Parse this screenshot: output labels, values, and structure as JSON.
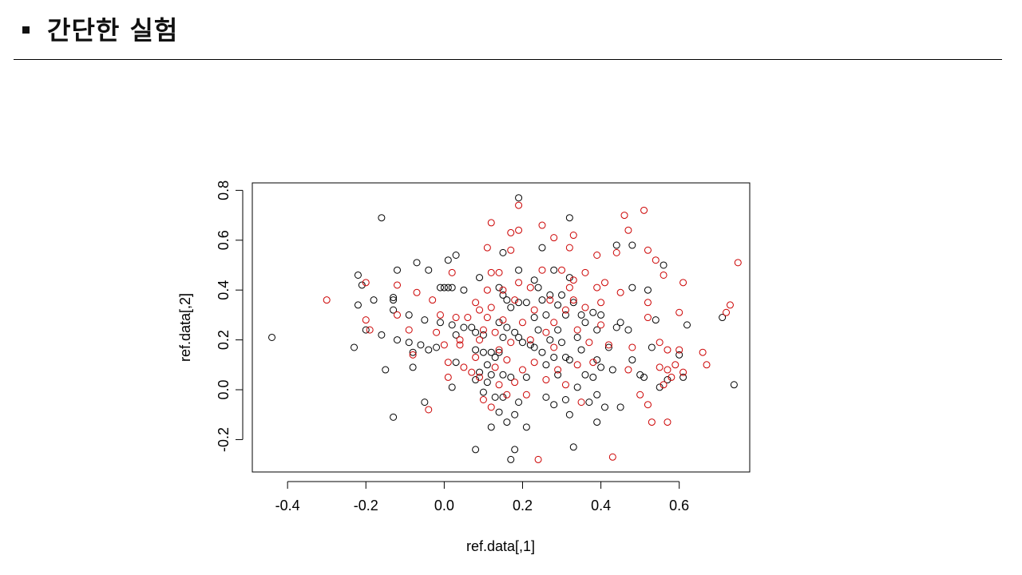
{
  "slide": {
    "title": "간단한 실험"
  },
  "colors": {
    "series_black": "#000000",
    "series_red": "#cc0000",
    "axis": "#000000"
  },
  "chart_data": {
    "type": "scatter",
    "title": "",
    "xlabel": "ref.data[,1]",
    "ylabel": "ref.data[,2]",
    "xlim": [
      -0.49,
      0.78
    ],
    "ylim": [
      -0.33,
      0.83
    ],
    "xticks": [
      -0.4,
      -0.2,
      0.0,
      0.2,
      0.4,
      0.6
    ],
    "xtick_labels": [
      "-0.4",
      "-0.2",
      "0.0",
      "0.2",
      "0.4",
      "0.6"
    ],
    "yticks": [
      -0.2,
      0.0,
      0.2,
      0.4,
      0.6,
      0.8
    ],
    "ytick_labels": [
      "-0.2",
      "0.0",
      "0.2",
      "0.4",
      "0.6",
      "0.8"
    ],
    "grid": false,
    "marker": "open-circle",
    "series": [
      {
        "color": "#000000",
        "points": [
          [
            -0.44,
            0.21
          ],
          [
            -0.16,
            0.69
          ],
          [
            -0.22,
            0.46
          ],
          [
            -0.22,
            0.34
          ],
          [
            -0.23,
            0.17
          ],
          [
            -0.21,
            0.42
          ],
          [
            -0.2,
            0.24
          ],
          [
            -0.18,
            0.36
          ],
          [
            -0.16,
            0.22
          ],
          [
            -0.15,
            0.08
          ],
          [
            -0.13,
            0.37
          ],
          [
            -0.13,
            0.36
          ],
          [
            -0.13,
            0.32
          ],
          [
            -0.12,
            0.2
          ],
          [
            -0.12,
            0.48
          ],
          [
            -0.13,
            -0.11
          ],
          [
            -0.09,
            0.3
          ],
          [
            -0.09,
            0.19
          ],
          [
            -0.08,
            0.09
          ],
          [
            -0.08,
            0.15
          ],
          [
            -0.07,
            0.51
          ],
          [
            -0.06,
            0.18
          ],
          [
            -0.05,
            0.28
          ],
          [
            -0.04,
            0.48
          ],
          [
            -0.04,
            0.16
          ],
          [
            -0.05,
            -0.05
          ],
          [
            -0.02,
            0.17
          ],
          [
            -0.01,
            0.27
          ],
          [
            -0.01,
            0.41
          ],
          [
            0.0,
            0.41
          ],
          [
            0.01,
            0.41
          ],
          [
            0.02,
            0.41
          ],
          [
            0.01,
            0.52
          ],
          [
            0.03,
            0.54
          ],
          [
            0.02,
            0.26
          ],
          [
            0.03,
            0.22
          ],
          [
            0.03,
            0.11
          ],
          [
            0.02,
            0.01
          ],
          [
            0.05,
            0.4
          ],
          [
            0.05,
            0.25
          ],
          [
            0.07,
            0.25
          ],
          [
            0.08,
            0.23
          ],
          [
            0.08,
            0.16
          ],
          [
            0.09,
            0.07
          ],
          [
            0.08,
            0.04
          ],
          [
            0.08,
            -0.24
          ],
          [
            0.09,
            0.45
          ],
          [
            0.1,
            0.22
          ],
          [
            0.1,
            0.15
          ],
          [
            0.11,
            0.1
          ],
          [
            0.11,
            0.03
          ],
          [
            0.1,
            -0.01
          ],
          [
            0.12,
            0.15
          ],
          [
            0.12,
            0.06
          ],
          [
            0.12,
            -0.15
          ],
          [
            0.13,
            0.13
          ],
          [
            0.13,
            -0.03
          ],
          [
            0.14,
            0.41
          ],
          [
            0.14,
            0.27
          ],
          [
            0.14,
            0.15
          ],
          [
            0.14,
            -0.09
          ],
          [
            0.15,
            0.55
          ],
          [
            0.15,
            0.38
          ],
          [
            0.15,
            0.21
          ],
          [
            0.15,
            0.06
          ],
          [
            0.15,
            -0.03
          ],
          [
            0.16,
            0.36
          ],
          [
            0.16,
            0.25
          ],
          [
            0.16,
            -0.13
          ],
          [
            0.17,
            0.33
          ],
          [
            0.17,
            0.05
          ],
          [
            0.17,
            -0.28
          ],
          [
            0.18,
            0.23
          ],
          [
            0.18,
            -0.1
          ],
          [
            0.18,
            -0.24
          ],
          [
            0.19,
            0.77
          ],
          [
            0.19,
            0.48
          ],
          [
            0.19,
            0.35
          ],
          [
            0.19,
            0.21
          ],
          [
            0.19,
            -0.05
          ],
          [
            0.2,
            0.19
          ],
          [
            0.21,
            0.35
          ],
          [
            0.21,
            0.05
          ],
          [
            0.21,
            -0.15
          ],
          [
            0.22,
            0.18
          ],
          [
            0.23,
            0.44
          ],
          [
            0.23,
            0.29
          ],
          [
            0.23,
            0.17
          ],
          [
            0.24,
            0.41
          ],
          [
            0.24,
            0.24
          ],
          [
            0.25,
            0.57
          ],
          [
            0.25,
            0.36
          ],
          [
            0.25,
            0.15
          ],
          [
            0.26,
            0.3
          ],
          [
            0.26,
            0.1
          ],
          [
            0.26,
            -0.03
          ],
          [
            0.27,
            0.38
          ],
          [
            0.27,
            0.2
          ],
          [
            0.28,
            0.48
          ],
          [
            0.28,
            0.13
          ],
          [
            0.28,
            -0.06
          ],
          [
            0.29,
            0.34
          ],
          [
            0.29,
            0.24
          ],
          [
            0.29,
            0.06
          ],
          [
            0.3,
            0.38
          ],
          [
            0.3,
            0.19
          ],
          [
            0.31,
            0.3
          ],
          [
            0.31,
            0.13
          ],
          [
            0.31,
            -0.04
          ],
          [
            0.32,
            0.69
          ],
          [
            0.32,
            0.45
          ],
          [
            0.32,
            0.12
          ],
          [
            0.32,
            -0.1
          ],
          [
            0.33,
            0.35
          ],
          [
            0.33,
            -0.23
          ],
          [
            0.34,
            0.21
          ],
          [
            0.34,
            0.01
          ],
          [
            0.35,
            0.3
          ],
          [
            0.35,
            0.16
          ],
          [
            0.36,
            0.27
          ],
          [
            0.36,
            0.06
          ],
          [
            0.37,
            -0.05
          ],
          [
            0.38,
            0.31
          ],
          [
            0.38,
            0.05
          ],
          [
            0.39,
            0.24
          ],
          [
            0.39,
            0.12
          ],
          [
            0.39,
            -0.02
          ],
          [
            0.39,
            -0.13
          ],
          [
            0.4,
            0.3
          ],
          [
            0.4,
            0.09
          ],
          [
            0.41,
            -0.07
          ],
          [
            0.42,
            0.17
          ],
          [
            0.43,
            0.08
          ],
          [
            0.44,
            0.58
          ],
          [
            0.44,
            0.25
          ],
          [
            0.45,
            0.27
          ],
          [
            0.45,
            -0.07
          ],
          [
            0.47,
            0.24
          ],
          [
            0.48,
            0.58
          ],
          [
            0.48,
            0.41
          ],
          [
            0.48,
            0.12
          ],
          [
            0.5,
            0.06
          ],
          [
            0.51,
            0.05
          ],
          [
            0.52,
            0.4
          ],
          [
            0.53,
            0.17
          ],
          [
            0.54,
            0.28
          ],
          [
            0.55,
            0.01
          ],
          [
            0.56,
            0.5
          ],
          [
            0.57,
            0.04
          ],
          [
            0.6,
            0.14
          ],
          [
            0.61,
            0.05
          ],
          [
            0.62,
            0.26
          ],
          [
            0.71,
            0.29
          ],
          [
            0.74,
            0.02
          ]
        ]
      },
      {
        "color": "#cc0000",
        "points": [
          [
            -0.3,
            0.36
          ],
          [
            -0.2,
            0.43
          ],
          [
            -0.2,
            0.28
          ],
          [
            -0.19,
            0.24
          ],
          [
            -0.12,
            0.42
          ],
          [
            -0.12,
            0.3
          ],
          [
            -0.09,
            0.24
          ],
          [
            -0.08,
            0.14
          ],
          [
            -0.07,
            0.39
          ],
          [
            -0.04,
            -0.08
          ],
          [
            -0.03,
            0.36
          ],
          [
            -0.02,
            0.23
          ],
          [
            -0.01,
            0.3
          ],
          [
            0.0,
            0.18
          ],
          [
            0.01,
            0.11
          ],
          [
            0.01,
            0.05
          ],
          [
            0.02,
            0.47
          ],
          [
            0.03,
            0.29
          ],
          [
            0.04,
            0.2
          ],
          [
            0.04,
            0.18
          ],
          [
            0.05,
            0.09
          ],
          [
            0.06,
            0.29
          ],
          [
            0.07,
            0.07
          ],
          [
            0.08,
            0.35
          ],
          [
            0.08,
            0.13
          ],
          [
            0.09,
            0.32
          ],
          [
            0.09,
            0.2
          ],
          [
            0.09,
            0.05
          ],
          [
            0.1,
            0.24
          ],
          [
            0.1,
            -0.04
          ],
          [
            0.11,
            0.57
          ],
          [
            0.11,
            0.4
          ],
          [
            0.11,
            0.29
          ],
          [
            0.12,
            0.67
          ],
          [
            0.12,
            0.47
          ],
          [
            0.12,
            0.33
          ],
          [
            0.12,
            -0.07
          ],
          [
            0.13,
            0.23
          ],
          [
            0.13,
            0.09
          ],
          [
            0.14,
            0.47
          ],
          [
            0.14,
            0.16
          ],
          [
            0.14,
            0.02
          ],
          [
            0.15,
            0.4
          ],
          [
            0.15,
            0.28
          ],
          [
            0.16,
            0.12
          ],
          [
            0.16,
            -0.02
          ],
          [
            0.17,
            0.63
          ],
          [
            0.17,
            0.56
          ],
          [
            0.17,
            0.19
          ],
          [
            0.18,
            0.36
          ],
          [
            0.18,
            0.03
          ],
          [
            0.19,
            0.74
          ],
          [
            0.19,
            0.64
          ],
          [
            0.19,
            0.43
          ],
          [
            0.2,
            0.27
          ],
          [
            0.2,
            0.08
          ],
          [
            0.21,
            -0.02
          ],
          [
            0.22,
            0.41
          ],
          [
            0.22,
            0.2
          ],
          [
            0.23,
            0.32
          ],
          [
            0.23,
            0.11
          ],
          [
            0.24,
            -0.28
          ],
          [
            0.25,
            0.66
          ],
          [
            0.25,
            0.48
          ],
          [
            0.26,
            0.23
          ],
          [
            0.26,
            0.04
          ],
          [
            0.27,
            0.36
          ],
          [
            0.28,
            0.61
          ],
          [
            0.28,
            0.27
          ],
          [
            0.28,
            0.17
          ],
          [
            0.29,
            0.08
          ],
          [
            0.3,
            0.48
          ],
          [
            0.31,
            0.32
          ],
          [
            0.31,
            0.02
          ],
          [
            0.32,
            0.57
          ],
          [
            0.32,
            0.41
          ],
          [
            0.33,
            0.62
          ],
          [
            0.33,
            0.44
          ],
          [
            0.33,
            0.36
          ],
          [
            0.34,
            0.24
          ],
          [
            0.34,
            0.1
          ],
          [
            0.35,
            -0.05
          ],
          [
            0.36,
            0.47
          ],
          [
            0.36,
            0.33
          ],
          [
            0.37,
            0.19
          ],
          [
            0.38,
            0.11
          ],
          [
            0.39,
            0.54
          ],
          [
            0.39,
            0.41
          ],
          [
            0.4,
            0.35
          ],
          [
            0.4,
            0.26
          ],
          [
            0.41,
            0.43
          ],
          [
            0.42,
            0.18
          ],
          [
            0.43,
            -0.27
          ],
          [
            0.44,
            0.55
          ],
          [
            0.45,
            0.39
          ],
          [
            0.46,
            0.7
          ],
          [
            0.47,
            0.08
          ],
          [
            0.47,
            0.64
          ],
          [
            0.48,
            0.17
          ],
          [
            0.5,
            -0.02
          ],
          [
            0.51,
            0.72
          ],
          [
            0.52,
            0.56
          ],
          [
            0.52,
            0.35
          ],
          [
            0.52,
            0.29
          ],
          [
            0.52,
            -0.06
          ],
          [
            0.53,
            -0.13
          ],
          [
            0.54,
            0.52
          ],
          [
            0.55,
            0.19
          ],
          [
            0.55,
            0.09
          ],
          [
            0.56,
            0.46
          ],
          [
            0.56,
            0.02
          ],
          [
            0.57,
            0.16
          ],
          [
            0.57,
            0.08
          ],
          [
            0.57,
            -0.13
          ],
          [
            0.58,
            0.05
          ],
          [
            0.59,
            0.1
          ],
          [
            0.6,
            0.31
          ],
          [
            0.6,
            0.16
          ],
          [
            0.61,
            0.43
          ],
          [
            0.61,
            0.07
          ],
          [
            0.66,
            0.15
          ],
          [
            0.67,
            0.1
          ],
          [
            0.72,
            0.31
          ],
          [
            0.73,
            0.34
          ],
          [
            0.75,
            0.51
          ]
        ]
      }
    ]
  }
}
